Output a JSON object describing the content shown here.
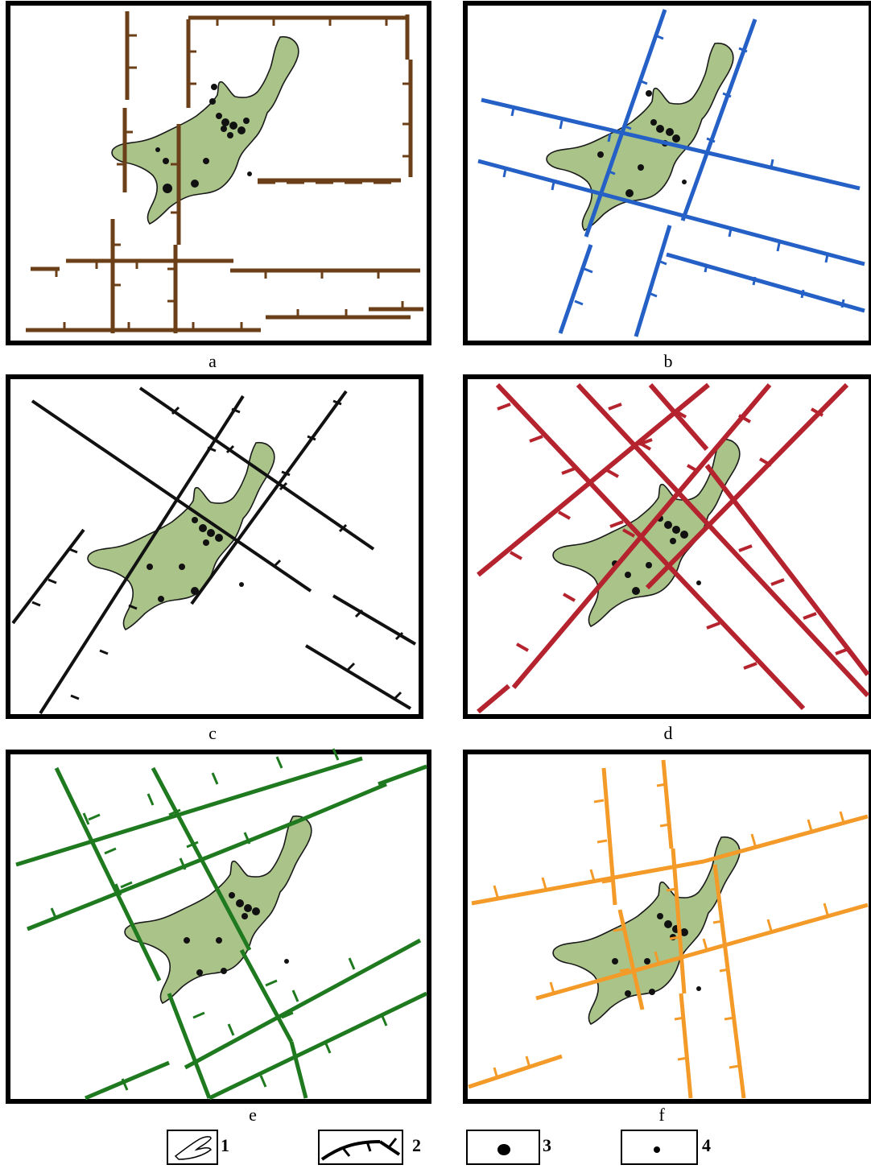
{
  "colors": {
    "massif_fill": "#a9c389",
    "outline": "#1a1a1a",
    "frame": "#000000"
  },
  "panels": [
    {
      "label": "a",
      "fault_color": "#6b3f17",
      "fault_style": "orthogonal N-S / E-W faults"
    },
    {
      "label": "b",
      "fault_color": "#2560c6",
      "fault_style": "NE and WNW faults"
    },
    {
      "label": "c",
      "fault_color": "#111111",
      "fault_style": "NE and NW faults"
    },
    {
      "label": "d",
      "fault_color": "#b5232e",
      "fault_style": "NE and NW faults"
    },
    {
      "label": "e",
      "fault_color": "#1f7a1f",
      "fault_style": "ENE and NNW faults"
    },
    {
      "label": "f",
      "fault_color": "#f39a28",
      "fault_style": "N-S and ENE faults"
    }
  ],
  "legend": [
    {
      "number": "1",
      "icon": "massif-outline-icon"
    },
    {
      "number": "2",
      "icon": "fault-with-ticks-icon"
    },
    {
      "number": "3",
      "icon": "large-dot-icon"
    },
    {
      "number": "4",
      "icon": "small-dot-icon"
    }
  ]
}
